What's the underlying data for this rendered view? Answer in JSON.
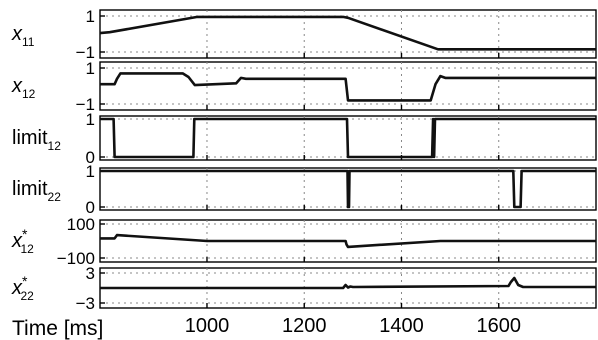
{
  "chart_data": {
    "type": "line",
    "xlabel": "Time [ms]",
    "xlim": [
      780,
      1800
    ],
    "xticks": [
      1000,
      1200,
      1400,
      1600
    ],
    "xtick_labels": [
      "1000",
      "1200",
      "1400",
      "1600"
    ],
    "grid": true,
    "panels": [
      {
        "label_main": "x",
        "label_sub": "11",
        "label_italic": true,
        "ylim": [
          -1,
          1
        ],
        "yticks": [
          1,
          -1
        ],
        "ytick_labels": [
          "1",
          "−1"
        ],
        "series": [
          {
            "x": [
              780,
              800,
              980,
              1280,
              1290,
              1475,
              1800
            ],
            "y": [
              0.05,
              0.1,
              0.95,
              0.95,
              0.9,
              -0.85,
              -0.85
            ]
          }
        ]
      },
      {
        "label_main": "x",
        "label_sub": "12",
        "label_italic": true,
        "ylim": [
          -1,
          1
        ],
        "yticks": [
          1,
          -1
        ],
        "ytick_labels": [
          "1",
          "−1"
        ],
        "series": [
          {
            "x": [
              780,
              810,
              815,
              822,
              950,
              962,
              975,
              1060,
              1070,
              1080,
              1285,
              1290,
              1460,
              1470,
              1480,
              1490,
              1800
            ],
            "y": [
              0.1,
              0.1,
              0.4,
              0.7,
              0.7,
              0.5,
              0.05,
              0.15,
              0.45,
              0.4,
              0.4,
              -0.8,
              -0.8,
              0.1,
              0.55,
              0.45,
              0.45
            ]
          }
        ]
      },
      {
        "label_main": "limit",
        "label_sub": "12",
        "label_italic": false,
        "ylim": [
          0,
          1
        ],
        "yticks": [
          1,
          0
        ],
        "ytick_labels": [
          "1",
          "0"
        ],
        "series": [
          {
            "x": [
              780,
              808,
              810,
              972,
              974,
              1288,
              1290,
              1463,
              1465,
              1467,
              1469,
              1471,
              1800
            ],
            "y": [
              1,
              1,
              0,
              0,
              1,
              1,
              0,
              0,
              1,
              0,
              1,
              1,
              1
            ]
          }
        ]
      },
      {
        "label_main": "limit",
        "label_sub": "22",
        "label_italic": false,
        "ylim": [
          0,
          1
        ],
        "yticks": [
          1,
          0
        ],
        "ytick_labels": [
          "1",
          "0"
        ],
        "series": [
          {
            "x": [
              780,
              1289,
              1290,
              1292,
              1293,
              1630,
              1632,
              1645,
              1647,
              1800
            ],
            "y": [
              1,
              1,
              0,
              0,
              1,
              1,
              0,
              0,
              1,
              1
            ]
          }
        ]
      },
      {
        "label_main": "x",
        "label_sub": "12",
        "label_star": true,
        "label_italic": true,
        "ylim": [
          -100,
          100
        ],
        "yticks": [
          100,
          -100
        ],
        "ytick_labels": [
          "100",
          "−100"
        ],
        "series": [
          {
            "x": [
              780,
              810,
              815,
              1000,
              1285,
              1287,
              1290,
              1480,
              1800
            ],
            "y": [
              15,
              15,
              35,
              0,
              0,
              -20,
              -35,
              0,
              0
            ]
          }
        ]
      },
      {
        "label_main": "x",
        "label_sub": "22",
        "label_star": true,
        "label_italic": true,
        "ylim": [
          -3,
          3
        ],
        "yticks": [
          3,
          -3
        ],
        "ytick_labels": [
          "3",
          "−3"
        ],
        "series": [
          {
            "x": [
              780,
              1280,
              1285,
              1290,
              1295,
              1300,
              1620,
              1625,
              1632,
              1640,
              1650,
              1800
            ],
            "y": [
              0,
              0,
              0.6,
              0.1,
              0.3,
              0.2,
              0.4,
              1.2,
              2.0,
              0.6,
              0.2,
              0.2
            ]
          }
        ]
      }
    ]
  }
}
